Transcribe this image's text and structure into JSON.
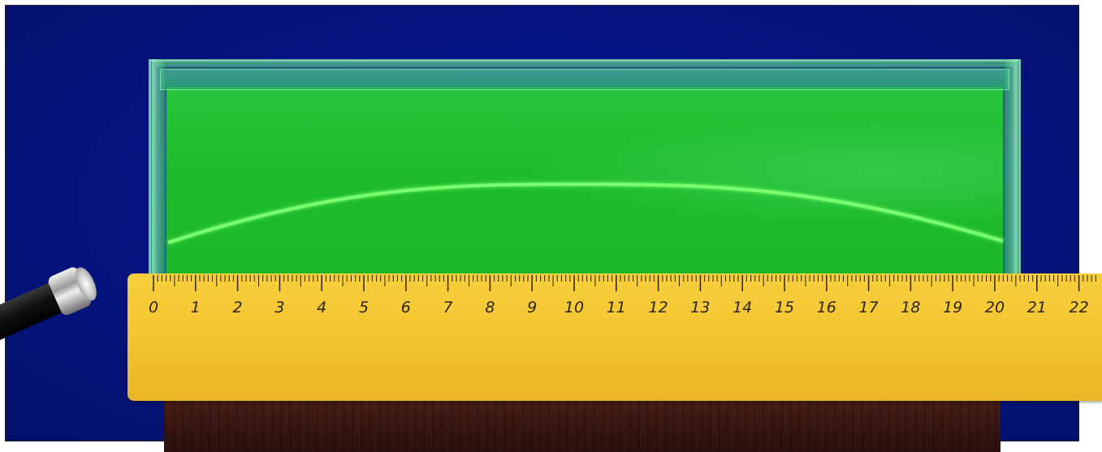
{
  "scene": {
    "description_free": true,
    "colors": {
      "background": "#061585",
      "water": "#22c232",
      "beam": "#6dff6a",
      "ruler": "#f4c531",
      "wood": "#3a1712"
    },
    "flashlight_icon": "flashlight-icon"
  },
  "ruler": {
    "labels": [
      "0",
      "1",
      "2",
      "3",
      "4",
      "5",
      "6",
      "7",
      "8",
      "9",
      "10",
      "11",
      "12",
      "13",
      "14",
      "15",
      "16",
      "17",
      "18",
      "19",
      "20",
      "21",
      "22"
    ]
  }
}
